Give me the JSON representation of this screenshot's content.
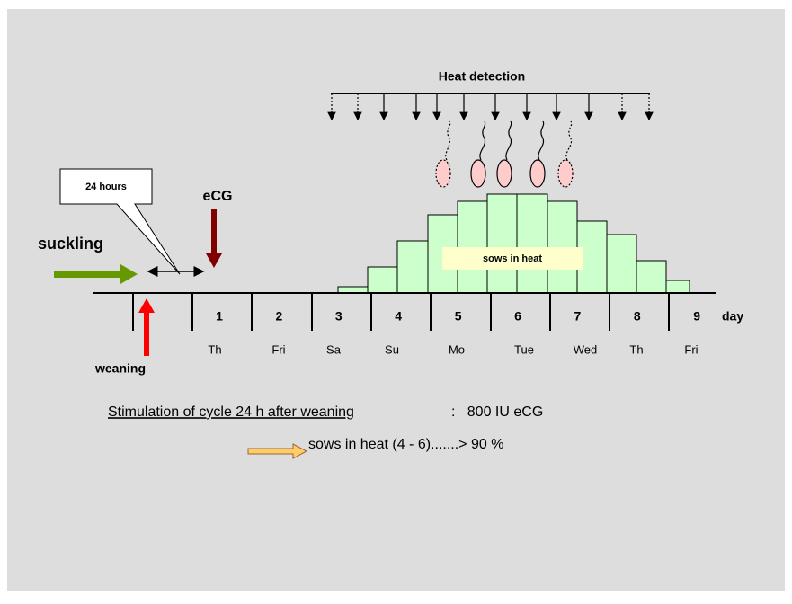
{
  "title": "Heat detection",
  "callout": "24 hours",
  "hormone": "eCG",
  "suckling": "suckling",
  "weaning": "weaning",
  "bar_label": "sows in heat",
  "days": [
    "1",
    "2",
    "3",
    "4",
    "5",
    "6",
    "7",
    "8",
    "9"
  ],
  "day_unit": "day",
  "weekdays": [
    "Th",
    "Fri",
    "Sa",
    "Su",
    "Mo",
    "Tue",
    "Wed",
    "Th",
    "Fri"
  ],
  "note": {
    "underlined": "Stimulation of cycle 24 h after weaning",
    "rest": ":   800 IU eCG"
  },
  "result": "sows in heat (4 - 6).......> 90 %"
}
